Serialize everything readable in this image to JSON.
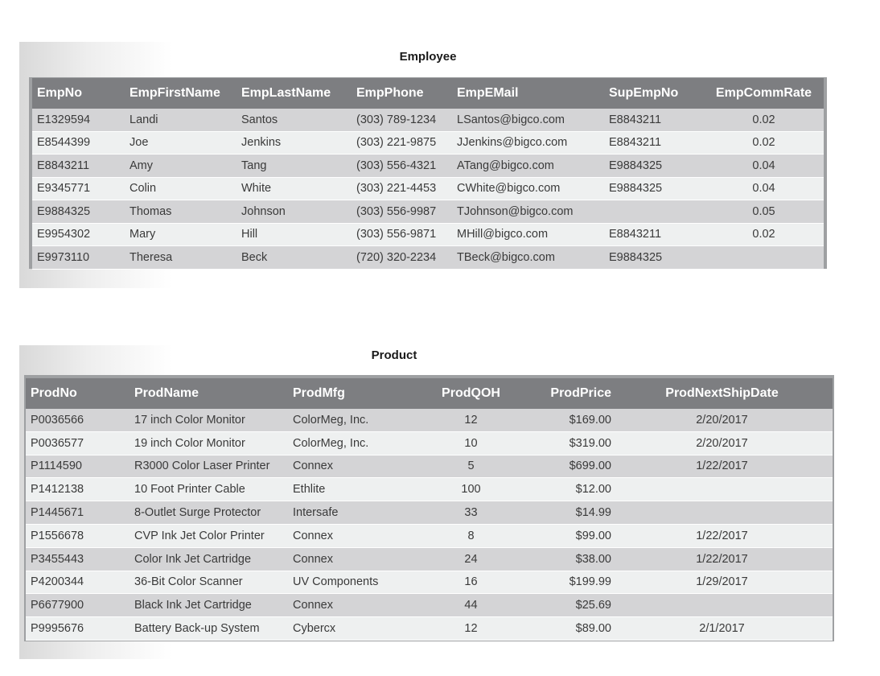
{
  "employee": {
    "title": "Employee",
    "columns": [
      "EmpNo",
      "EmpFirstName",
      "EmpLastName",
      "EmpPhone",
      "EmpEMail",
      "SupEmpNo",
      "EmpCommRate"
    ],
    "rows": [
      [
        "E1329594",
        "Landi",
        "Santos",
        "(303) 789-1234",
        "LSantos@bigco.com",
        "E8843211",
        "0.02"
      ],
      [
        "E8544399",
        "Joe",
        "Jenkins",
        "(303) 221-9875",
        "JJenkins@bigco.com",
        "E8843211",
        "0.02"
      ],
      [
        "E8843211",
        "Amy",
        "Tang",
        "(303) 556-4321",
        "ATang@bigco.com",
        "E9884325",
        "0.04"
      ],
      [
        "E9345771",
        "Colin",
        "White",
        "(303) 221-4453",
        "CWhite@bigco.com",
        "E9884325",
        "0.04"
      ],
      [
        "E9884325",
        "Thomas",
        "Johnson",
        "(303) 556-9987",
        "TJohnson@bigco.com",
        "",
        "0.05"
      ],
      [
        "E9954302",
        "Mary",
        "Hill",
        "(303) 556-9871",
        "MHill@bigco.com",
        "E8843211",
        "0.02"
      ],
      [
        "E9973110",
        "Theresa",
        "Beck",
        "(720) 320-2234",
        "TBeck@bigco.com",
        "E9884325",
        ""
      ]
    ]
  },
  "product": {
    "title": "Product",
    "columns": [
      "ProdNo",
      "ProdName",
      "ProdMfg",
      "ProdQOH",
      "ProdPrice",
      "ProdNextShipDate"
    ],
    "rows": [
      [
        "P0036566",
        "17 inch Color Monitor",
        "ColorMeg, Inc.",
        "12",
        "$169.00",
        "2/20/2017"
      ],
      [
        "P0036577",
        "19 inch Color Monitor",
        "ColorMeg, Inc.",
        "10",
        "$319.00",
        "2/20/2017"
      ],
      [
        "P1114590",
        "R3000 Color Laser Printer",
        "Connex",
        "5",
        "$699.00",
        "1/22/2017"
      ],
      [
        "P1412138",
        "10 Foot Printer Cable",
        "Ethlite",
        "100",
        "$12.00",
        ""
      ],
      [
        "P1445671",
        "8-Outlet Surge Protector",
        "Intersafe",
        "33",
        "$14.99",
        ""
      ],
      [
        "P1556678",
        "CVP Ink Jet Color Printer",
        "Connex",
        "8",
        "$99.00",
        "1/22/2017"
      ],
      [
        "P3455443",
        "Color Ink Jet Cartridge",
        "Connex",
        "24",
        "$38.00",
        "1/22/2017"
      ],
      [
        "P4200344",
        "36-Bit Color Scanner",
        "UV Components",
        "16",
        "$199.99",
        "1/29/2017"
      ],
      [
        "P6677900",
        "Black Ink Jet Cartridge",
        "Connex",
        "44",
        "$25.69",
        ""
      ],
      [
        "P9995676",
        "Battery Back-up System",
        "Cybercx",
        "12",
        "$89.00",
        "2/1/2017"
      ]
    ]
  },
  "colors": {
    "header_bg": "#7d7e81",
    "row_dark": "#d4d4d6",
    "row_light": "#eef0f0"
  }
}
